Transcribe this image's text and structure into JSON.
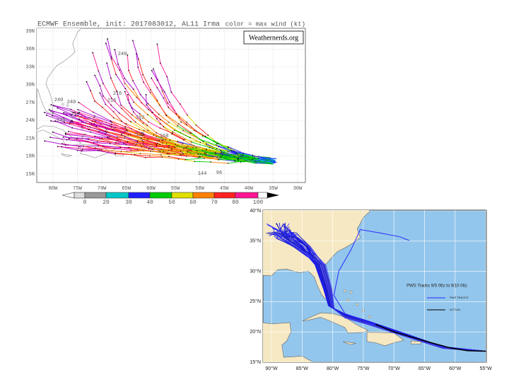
{
  "top_map": {
    "title": "ECMWF Ensemble, init: 2017083012, AL11 Irma",
    "color_note": "color = max wind (kt)",
    "watermark": "Weathernerds.org",
    "lat_labels": [
      "39N",
      "36N",
      "33N",
      "30N",
      "27N",
      "24N",
      "21N",
      "18N",
      "15N"
    ],
    "lon_labels": [
      "80W",
      "75W",
      "70W",
      "65W",
      "60W",
      "55W",
      "50W",
      "45W",
      "40W",
      "35W",
      "30W"
    ],
    "colorbar_labels": [
      "0",
      "20",
      "30",
      "40",
      "50",
      "60",
      "70",
      "80",
      "100"
    ],
    "track_labels": [
      "240",
      "240",
      "216",
      "240",
      "216",
      "192",
      "168",
      "120",
      "240",
      "216",
      "96",
      "144"
    ]
  },
  "bottom_map": {
    "lat_labels": [
      "40°N",
      "35°N",
      "30°N",
      "25°N",
      "20°N",
      "15°N"
    ],
    "lon_labels": [
      "90°W",
      "85°W",
      "80°W",
      "75°W",
      "70°W",
      "65°W",
      "60°W",
      "55°W"
    ],
    "legend": {
      "title": "PWS Tracks 9/5 06z to 9/10 06z",
      "entries": [
        "PWS TRACKS",
        "ACTUAL"
      ]
    }
  }
}
